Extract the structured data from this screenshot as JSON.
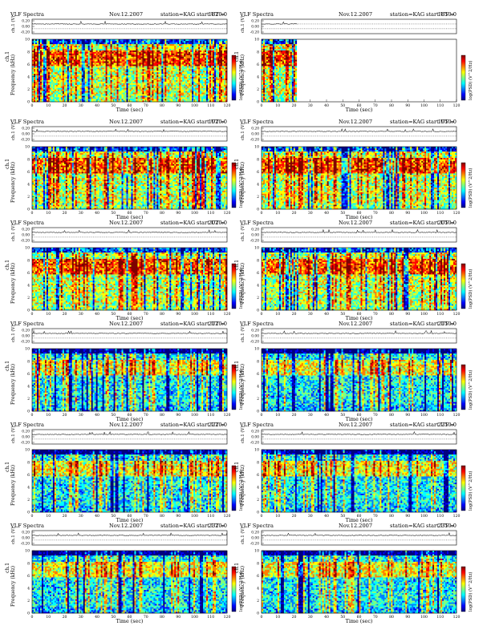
{
  "colors": {
    "spectrogram_scale": [
      "#00007f",
      "#0000ff",
      "#007fff",
      "#00ffff",
      "#7fff7f",
      "#ffff00",
      "#ff7f00",
      "#ff0000",
      "#7f0000"
    ],
    "plot_background": "#ffffff",
    "axis": "#000000"
  },
  "common": {
    "label_vlf": "VLF Spectra",
    "date": "Nov.12.2007",
    "station": "station=KAG",
    "start_prefix": "start  UT =",
    "waveform_ylabel": "ch.1 (V)",
    "spectrogram_ylabel": "Frequency (kHz)",
    "spectrogram_ylabel_prefix": "ch.1",
    "xlabel": "Time (sec)",
    "colorbar_label": "log(PSD) (V^2/Hz)"
  },
  "chart_data": [
    {
      "type": "heatmap",
      "start_ut": "1820:0",
      "x_ticks": [
        0,
        10,
        20,
        30,
        40,
        50,
        60,
        70,
        80,
        90,
        100,
        110,
        120
      ],
      "waveform_ticks": [
        "0.20",
        "0.00",
        "-0.20"
      ],
      "freq_ticks": [
        0,
        2,
        4,
        6,
        8,
        10
      ],
      "xlim": [
        0,
        120
      ],
      "ylim_khz": [
        0,
        10
      ],
      "data_extent_sec": 120
    },
    {
      "type": "heatmap",
      "start_ut": "1850:0",
      "x_ticks": [
        0,
        10,
        20,
        30,
        40,
        50,
        60,
        70,
        80,
        90,
        100,
        110,
        120
      ],
      "waveform_ticks": [
        "0.20",
        "0.00",
        "-0.20"
      ],
      "freq_ticks": [
        0,
        2,
        4,
        6,
        8,
        10
      ],
      "xlim": [
        0,
        120
      ],
      "ylim_khz": [
        0,
        10
      ],
      "data_extent_sec": 22
    },
    {
      "type": "heatmap",
      "start_ut": "1920:0",
      "x_ticks": [
        0,
        10,
        20,
        30,
        40,
        50,
        60,
        70,
        80,
        90,
        100,
        110,
        120
      ],
      "waveform_ticks": [
        "0.20",
        "0.00",
        "-0.20"
      ],
      "freq_ticks": [
        0,
        2,
        4,
        6,
        8,
        10
      ],
      "xlim": [
        0,
        120
      ],
      "ylim_khz": [
        0,
        10
      ],
      "data_extent_sec": 120
    },
    {
      "type": "heatmap",
      "start_ut": "1950:0",
      "x_ticks": [
        0,
        10,
        20,
        30,
        40,
        50,
        60,
        70,
        80,
        90,
        100,
        110,
        120
      ],
      "waveform_ticks": [
        "0.20",
        "0.00",
        "-0.20"
      ],
      "freq_ticks": [
        0,
        2,
        4,
        6,
        8,
        10
      ],
      "xlim": [
        0,
        120
      ],
      "ylim_khz": [
        0,
        10
      ],
      "data_extent_sec": 120
    },
    {
      "type": "heatmap",
      "start_ut": "2020:0",
      "x_ticks": [
        0,
        10,
        20,
        30,
        40,
        50,
        60,
        70,
        80,
        90,
        100,
        110,
        120
      ],
      "waveform_ticks": [
        "0.20",
        "0.00",
        "-0.20"
      ],
      "freq_ticks": [
        0,
        2,
        4,
        6,
        8,
        10
      ],
      "xlim": [
        0,
        120
      ],
      "ylim_khz": [
        0,
        10
      ],
      "data_extent_sec": 120
    },
    {
      "type": "heatmap",
      "start_ut": "2050:0",
      "x_ticks": [
        0,
        10,
        20,
        30,
        40,
        50,
        60,
        70,
        80,
        90,
        100,
        110,
        120
      ],
      "waveform_ticks": [
        "0.20",
        "0.00",
        "-0.20"
      ],
      "freq_ticks": [
        0,
        2,
        4,
        6,
        8,
        10
      ],
      "xlim": [
        0,
        120
      ],
      "ylim_khz": [
        0,
        10
      ],
      "data_extent_sec": 120
    },
    {
      "type": "heatmap",
      "start_ut": "2120:0",
      "x_ticks": [
        0,
        10,
        20,
        30,
        40,
        50,
        60,
        70,
        80,
        90,
        100,
        110,
        120
      ],
      "waveform_ticks": [
        "0.20",
        "0.00",
        "-0.20"
      ],
      "freq_ticks": [
        0,
        2,
        4,
        6,
        8,
        10
      ],
      "xlim": [
        0,
        120
      ],
      "ylim_khz": [
        0,
        10
      ],
      "data_extent_sec": 120
    },
    {
      "type": "heatmap",
      "start_ut": "2150:0",
      "x_ticks": [
        0,
        10,
        20,
        30,
        40,
        50,
        60,
        70,
        80,
        90,
        100,
        110,
        120
      ],
      "waveform_ticks": [
        "0.20",
        "0.00",
        "-0.20"
      ],
      "freq_ticks": [
        0,
        2,
        4,
        6,
        8,
        10
      ],
      "xlim": [
        0,
        120
      ],
      "ylim_khz": [
        0,
        10
      ],
      "data_extent_sec": 120
    },
    {
      "type": "heatmap",
      "start_ut": "2220:0",
      "x_ticks": [
        0,
        10,
        20,
        30,
        40,
        50,
        60,
        70,
        80,
        90,
        100,
        110,
        120
      ],
      "waveform_ticks": [
        "0.20",
        "0.00",
        "-0.20"
      ],
      "freq_ticks": [
        0,
        2,
        4,
        6,
        8,
        10
      ],
      "xlim": [
        0,
        120
      ],
      "ylim_khz": [
        0,
        10
      ],
      "data_extent_sec": 120
    },
    {
      "type": "heatmap",
      "start_ut": "2250:0",
      "x_ticks": [
        0,
        10,
        20,
        30,
        40,
        50,
        60,
        70,
        80,
        90,
        100,
        110,
        120
      ],
      "waveform_ticks": [
        "0.20",
        "0.00",
        "-0.20"
      ],
      "freq_ticks": [
        0,
        2,
        4,
        6,
        8,
        10
      ],
      "xlim": [
        0,
        120
      ],
      "ylim_khz": [
        0,
        10
      ],
      "data_extent_sec": 120
    },
    {
      "type": "heatmap",
      "start_ut": "2320:0",
      "x_ticks": [
        0,
        10,
        20,
        30,
        40,
        50,
        60,
        70,
        80,
        90,
        100,
        110,
        120
      ],
      "waveform_ticks": [
        "0.20",
        "0.00",
        "-0.20"
      ],
      "freq_ticks": [
        0,
        2,
        4,
        6,
        8,
        10
      ],
      "xlim": [
        0,
        120
      ],
      "ylim_khz": [
        0,
        10
      ],
      "data_extent_sec": 120
    },
    {
      "type": "heatmap",
      "start_ut": "2350:0",
      "x_ticks": [
        0,
        10,
        20,
        30,
        40,
        50,
        60,
        70,
        80,
        90,
        100,
        110,
        120
      ],
      "waveform_ticks": [
        "0.20",
        "0.00",
        "-0.20"
      ],
      "freq_ticks": [
        0,
        2,
        4,
        6,
        8,
        10
      ],
      "xlim": [
        0,
        120
      ],
      "ylim_khz": [
        0,
        10
      ],
      "data_extent_sec": 120
    }
  ]
}
